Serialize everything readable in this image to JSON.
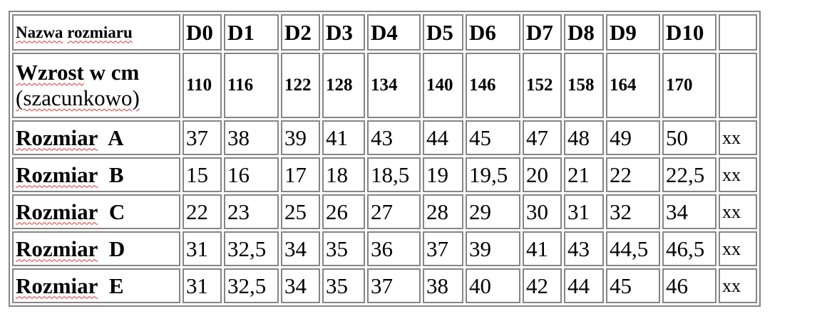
{
  "table": {
    "header_label": [
      "Nazwa",
      "rozmiaru"
    ],
    "codes": [
      "D0",
      "D1",
      "D2",
      "D3",
      "D4",
      "D5",
      "D6",
      "D7",
      "D8",
      "D9",
      "D10",
      ""
    ],
    "height_label": {
      "line1_a": "Wzrost",
      "line1_b": "w cm",
      "line2": "(szacunkowo)"
    },
    "heights": [
      "110",
      "116",
      "122",
      "128",
      "134",
      "140",
      "146",
      "152",
      "158",
      "164",
      "170",
      ""
    ],
    "rows": [
      {
        "label_a": "Rozmiar",
        "label_b": "A",
        "values": [
          "37",
          "38",
          "39",
          "41",
          "43",
          "44",
          "45",
          "47",
          "48",
          "49",
          "50",
          "xx"
        ]
      },
      {
        "label_a": "Rozmiar",
        "label_b": "B",
        "values": [
          "15",
          "16",
          "17",
          "18",
          "18,5",
          "19",
          "19,5",
          "20",
          "21",
          "22",
          "22,5",
          "xx"
        ]
      },
      {
        "label_a": "Rozmiar",
        "label_b": "C",
        "values": [
          "22",
          "23",
          "25",
          "26",
          "27",
          "28",
          "29",
          "30",
          "31",
          "32",
          "34",
          "xx"
        ]
      },
      {
        "label_a": "Rozmiar",
        "label_b": "D",
        "values": [
          "31",
          "32,5",
          "34",
          "35",
          "36",
          "37",
          "39",
          "41",
          "43",
          "44,5",
          "46,5",
          "xx"
        ]
      },
      {
        "label_a": "Rozmiar",
        "label_b": "E",
        "values": [
          "31",
          "32,5",
          "34",
          "35",
          "37",
          "38",
          "40",
          "42",
          "44",
          "45",
          "46",
          "xx"
        ]
      }
    ],
    "colors": {
      "border": "#858585",
      "spellcheck_underline": "#e03030"
    }
  }
}
